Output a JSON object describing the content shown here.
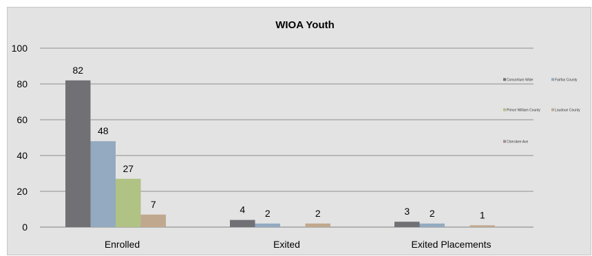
{
  "chart_data": {
    "type": "bar",
    "title": "WIOA Youth",
    "xlabel": "",
    "ylabel": "",
    "ylim": [
      0,
      100
    ],
    "yticks": [
      0,
      20,
      40,
      60,
      80,
      100
    ],
    "grid": true,
    "legend_position": "right",
    "categories": [
      "Enrolled",
      "Exited",
      "Exited Placements"
    ],
    "series": [
      {
        "name": "Consortium Wide",
        "color": "#707075",
        "values": [
          82,
          4,
          3
        ]
      },
      {
        "name": "Fairfax County",
        "color": "#93aac0",
        "values": [
          48,
          2,
          2
        ]
      },
      {
        "name": "Prince William County",
        "color": "#b0c284",
        "values": [
          27,
          0,
          0
        ]
      },
      {
        "name": "Loudoun County",
        "color": "#c0a88e",
        "values": [
          7,
          2,
          1
        ]
      },
      {
        "name": "Cherokee Ave",
        "color": "#a88a9a",
        "values": [
          0,
          0,
          0
        ]
      }
    ],
    "data_labels": [
      [
        "82",
        "4",
        "3"
      ],
      [
        "48",
        "2",
        "2"
      ],
      [
        "27",
        "",
        ""
      ],
      [
        "7",
        "2",
        "1"
      ],
      [
        "",
        "",
        ""
      ]
    ]
  }
}
